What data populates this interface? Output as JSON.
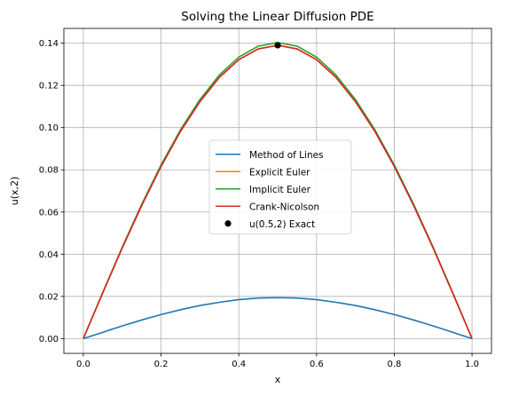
{
  "chart_data": {
    "type": "line",
    "title": "Solving the Linear Diffusion PDE",
    "xlabel": "x",
    "ylabel": "u(x,2)",
    "xlim": [
      -0.05,
      1.05
    ],
    "ylim": [
      -0.007,
      0.147
    ],
    "xticks": [
      "0.0",
      "0.2",
      "0.4",
      "0.6",
      "0.8",
      "1.0"
    ],
    "yticks": [
      "0.00",
      "0.02",
      "0.04",
      "0.06",
      "0.08",
      "0.10",
      "0.12",
      "0.14"
    ],
    "grid": true,
    "legend_position": "center",
    "x": [
      0,
      0.05,
      0.1,
      0.15,
      0.2,
      0.25,
      0.3,
      0.35,
      0.4,
      0.45,
      0.5,
      0.55,
      0.6,
      0.65,
      0.7,
      0.75,
      0.8,
      0.85,
      0.9,
      0.95,
      1.0
    ],
    "series": [
      {
        "name": "Method of Lines",
        "color": "#1f77b4",
        "values": [
          0,
          0.003,
          0.006,
          0.0088,
          0.0114,
          0.0137,
          0.0157,
          0.0172,
          0.0185,
          0.0192,
          0.0194,
          0.0192,
          0.0185,
          0.0172,
          0.0157,
          0.0137,
          0.0114,
          0.0088,
          0.006,
          0.003,
          0
        ]
      },
      {
        "name": "Explicit Euler",
        "color": "#ff7f0e",
        "values": [
          0,
          0.0217,
          0.0429,
          0.063,
          0.0816,
          0.0982,
          0.1123,
          0.1238,
          0.1322,
          0.1373,
          0.139,
          0.1373,
          0.1322,
          0.1238,
          0.1123,
          0.0982,
          0.0816,
          0.063,
          0.0429,
          0.0217,
          0
        ]
      },
      {
        "name": "Implicit Euler",
        "color": "#2ca02c",
        "values": [
          0,
          0.0219,
          0.0433,
          0.0636,
          0.0823,
          0.099,
          0.1133,
          0.1249,
          0.1334,
          0.1386,
          0.1403,
          0.1386,
          0.1334,
          0.1249,
          0.1133,
          0.099,
          0.0823,
          0.0636,
          0.0433,
          0.0219,
          0
        ]
      },
      {
        "name": "Crank-Nicolson",
        "color": "#d62728",
        "values": [
          0,
          0.0217,
          0.0429,
          0.063,
          0.0816,
          0.0982,
          0.1123,
          0.1238,
          0.1322,
          0.1373,
          0.139,
          0.1373,
          0.1322,
          0.1238,
          0.1123,
          0.0982,
          0.0816,
          0.063,
          0.0429,
          0.0217,
          0
        ]
      }
    ],
    "points": [
      {
        "name": "u(0.5,2) Exact",
        "color": "#000000",
        "x": 0.5,
        "y": 0.139
      }
    ]
  }
}
